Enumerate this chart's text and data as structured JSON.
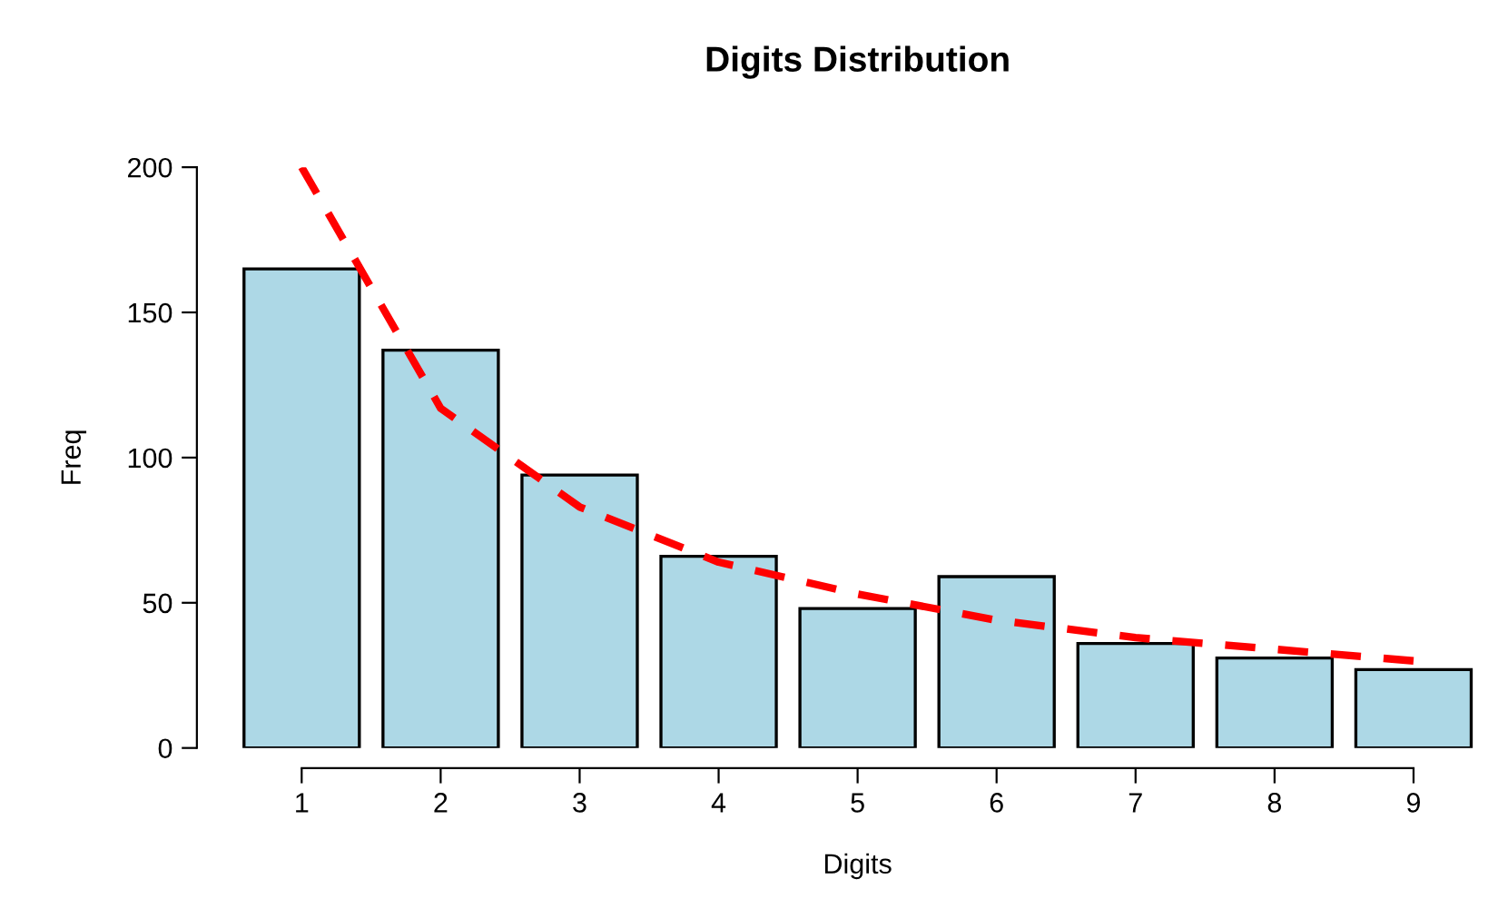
{
  "chart_data": {
    "type": "bar",
    "title": "Digits Distribution",
    "xlabel": "Digits",
    "ylabel": "Freq",
    "categories": [
      "1",
      "2",
      "3",
      "4",
      "5",
      "6",
      "7",
      "8",
      "9"
    ],
    "series": [
      {
        "color": "#add8e6",
        "values": [
          165,
          137,
          94,
          66,
          48,
          59,
          36,
          31,
          27
        ]
      },
      {
        "type": "line",
        "color": "#ff0000",
        "line_style": "dashed",
        "values": [
          200,
          117,
          83,
          64,
          53,
          44,
          38,
          34,
          30
        ]
      }
    ],
    "ylim": [
      0,
      200
    ],
    "yticks": [
      0,
      50,
      100,
      150,
      200
    ],
    "grid": false,
    "legend": false
  }
}
